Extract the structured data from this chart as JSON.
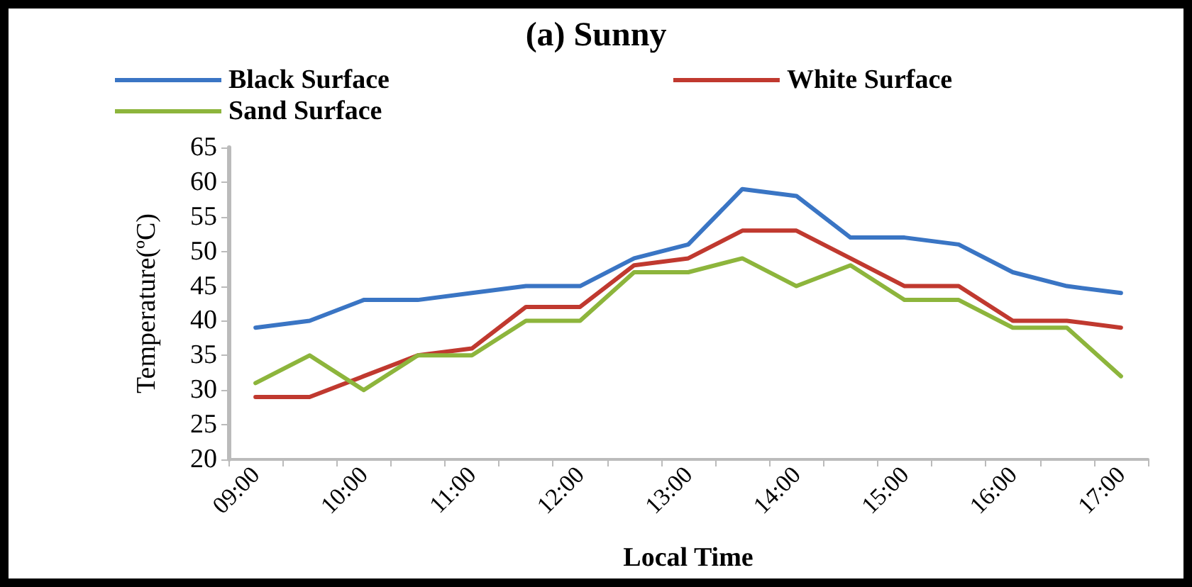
{
  "chart_data": {
    "type": "line",
    "title": "(a) Sunny",
    "xlabel": "Local Time",
    "ylabel": "Temperature(ºC)",
    "categories": [
      "09:00",
      null,
      "10:00",
      null,
      "11:00",
      null,
      "12:00",
      null,
      "13:00",
      null,
      "14:00",
      null,
      "15:00",
      null,
      "16:00",
      null,
      "17:00"
    ],
    "series": [
      {
        "name": "Black Surface",
        "color": "#3a75c4",
        "values": [
          39,
          40,
          43,
          43,
          44,
          45,
          45,
          49,
          51,
          59,
          58,
          52,
          52,
          51,
          47,
          45,
          44
        ]
      },
      {
        "name": "White Surface",
        "color": "#c0392f",
        "values": [
          29,
          29,
          32,
          35,
          36,
          42,
          42,
          48,
          49,
          53,
          53,
          49,
          45,
          45,
          40,
          40,
          39
        ]
      },
      {
        "name": "Sand Surface",
        "color": "#8db53c",
        "values": [
          31,
          35,
          30,
          35,
          35,
          40,
          40,
          47,
          47,
          49,
          45,
          48,
          43,
          43,
          39,
          39,
          32
        ]
      }
    ],
    "ylim": [
      20,
      65
    ],
    "yticks": [
      20,
      25,
      30,
      35,
      40,
      45,
      50,
      55,
      60,
      65
    ],
    "grid": false,
    "legend": "top",
    "marker": "none",
    "line_style": "solid"
  }
}
